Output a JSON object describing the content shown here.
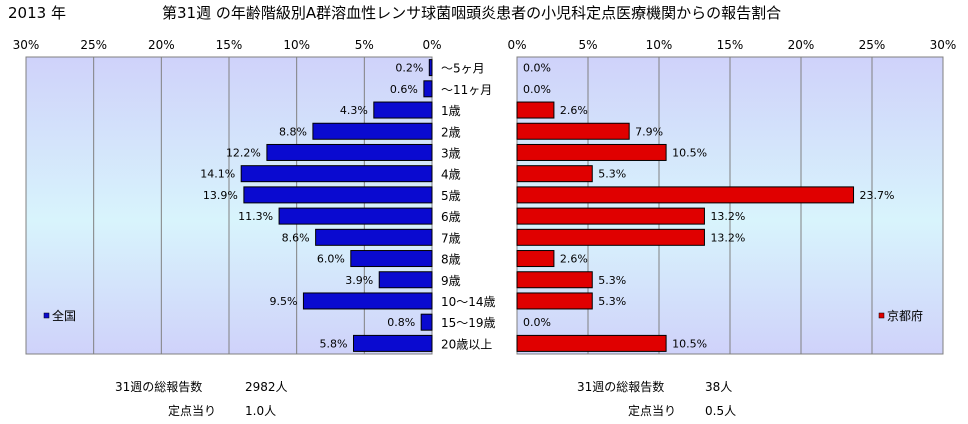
{
  "page": {
    "year": "2013 年",
    "title": "第31週 の年齢階級別A群溶血性レンサ球菌咽頭炎患者の小児科定点医療機関からの報告割合"
  },
  "summary": {
    "left": {
      "total_label": "31週の総報告数",
      "total_value": "2982人",
      "per_label": "定点当り",
      "per_value": "1.0人"
    },
    "right": {
      "total_label": "31週の総報告数",
      "total_value": "38人",
      "per_label": "定点当り",
      "per_value": "0.5人"
    }
  },
  "chart_data": [
    {
      "type": "bar",
      "orientation": "horizontal",
      "direction": "right-to-left",
      "legend": "全国",
      "legend_placement": "bottom-left",
      "color": "#0a0ad0",
      "xlim": [
        0,
        30
      ],
      "ticks": [
        "30%",
        "25%",
        "20%",
        "15%",
        "10%",
        "5%",
        "0%"
      ],
      "grid": true,
      "values": [
        0.2,
        0.6,
        4.3,
        8.8,
        12.2,
        14.1,
        13.9,
        11.3,
        8.6,
        6.0,
        3.9,
        9.5,
        0.8,
        5.8
      ],
      "labels": [
        "0.2%",
        "0.6%",
        "4.3%",
        "8.8%",
        "12.2%",
        "14.1%",
        "13.9%",
        "11.3%",
        "8.6%",
        "6.0%",
        "3.9%",
        "9.5%",
        "0.8%",
        "5.8%"
      ]
    },
    {
      "type": "bar",
      "orientation": "horizontal",
      "direction": "left-to-right",
      "legend": "京都府",
      "legend_placement": "bottom-right",
      "color": "#e00000",
      "xlim": [
        0,
        30
      ],
      "ticks": [
        "0%",
        "5%",
        "10%",
        "15%",
        "20%",
        "25%",
        "30%"
      ],
      "grid": true,
      "values": [
        0.0,
        0.0,
        2.6,
        7.9,
        10.5,
        5.3,
        23.7,
        13.2,
        13.2,
        2.6,
        5.3,
        5.3,
        0.0,
        10.5
      ],
      "labels": [
        "0.0%",
        "0.0%",
        "2.6%",
        "7.9%",
        "10.5%",
        "5.3%",
        "23.7%",
        "13.2%",
        "13.2%",
        "2.6%",
        "5.3%",
        "5.3%",
        "0.0%",
        "10.5%"
      ]
    }
  ],
  "categories": [
    "～5ヶ月",
    "～11ヶ月",
    "1歳",
    "2歳",
    "3歳",
    "4歳",
    "5歳",
    "6歳",
    "7歳",
    "8歳",
    "9歳",
    "10～14歳",
    "15～19歳",
    "20歳以上"
  ]
}
